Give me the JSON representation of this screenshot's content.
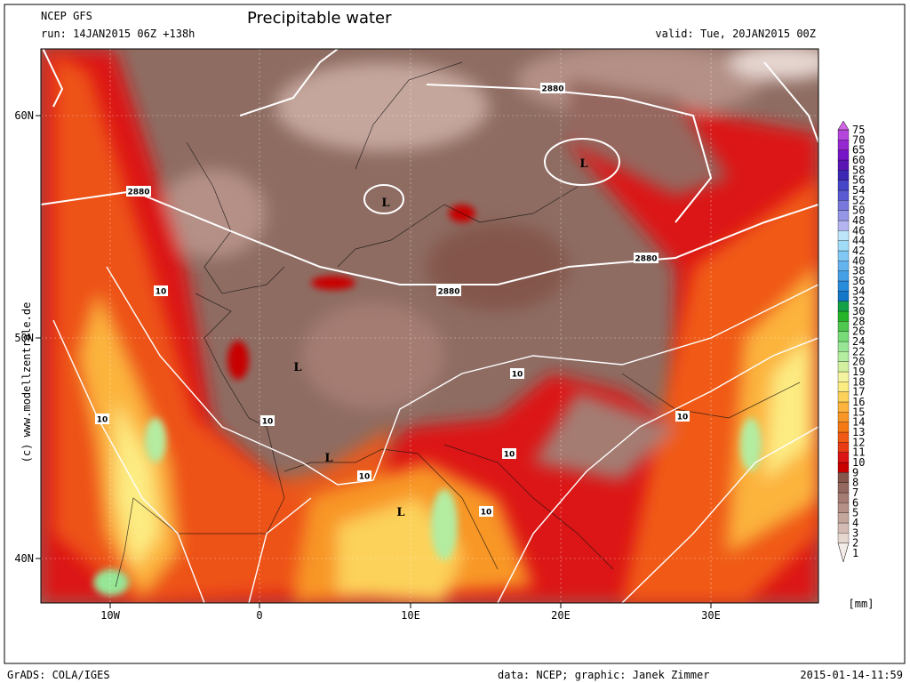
{
  "header": {
    "model": "NCEP GFS",
    "run": "run: 14JAN2015 06Z +138h",
    "title": "Precipitable water",
    "valid": "valid: Tue, 20JAN2015 00Z"
  },
  "lat_labels": [
    "60N",
    "50N",
    "40N"
  ],
  "lon_labels": [
    "10W",
    "0",
    "10E",
    "20E",
    "30E"
  ],
  "contour_labels": [
    "2880",
    "2880",
    "2880",
    "2880",
    "10",
    "10",
    "10",
    "10",
    "10",
    "10",
    "10",
    "10"
  ],
  "lows": [
    "L",
    "L",
    "L",
    "L",
    "L"
  ],
  "colorbar": {
    "unit": "[mm]",
    "levels": [
      "1",
      "2",
      "3",
      "4",
      "5",
      "6",
      "7",
      "8",
      "9",
      "10",
      "11",
      "12",
      "13",
      "14",
      "15",
      "16",
      "17",
      "18",
      "19",
      "20",
      "22",
      "24",
      "26",
      "28",
      "30",
      "32",
      "34",
      "36",
      "38",
      "40",
      "42",
      "44",
      "46",
      "48",
      "50",
      "52",
      "54",
      "56",
      "58",
      "60",
      "65",
      "70",
      "75"
    ],
    "colors": [
      "#f4ece8",
      "#e6d6d0",
      "#d4bcb4",
      "#c4a69c",
      "#b49086",
      "#a47c72",
      "#94685e",
      "#84564c",
      "#c80000",
      "#dc1414",
      "#e83c14",
      "#f05a14",
      "#f47814",
      "#f89628",
      "#fcb43c",
      "#fcd25a",
      "#fcec82",
      "#f4f4a0",
      "#d2f0a0",
      "#b4eca0",
      "#96e696",
      "#78dc78",
      "#50c850",
      "#28b428",
      "#14a046",
      "#1478c8",
      "#288cdc",
      "#46a0e6",
      "#64b4f0",
      "#82c8f4",
      "#a0dcf8",
      "#bee6fa",
      "#b4b4f0",
      "#9696e6",
      "#7878dc",
      "#5a5ad2",
      "#4646c8",
      "#3c28b4",
      "#5a14b4",
      "#7814c8",
      "#9628d2",
      "#b446dc",
      "#d264e6"
    ]
  },
  "watermark": "(c) www.modellzentrale.de",
  "footer": {
    "software": "GrADS: COLA/IGES",
    "credit": "data: NCEP; graphic: Janek Zimmer",
    "timestamp": "2015-01-14-11:59"
  }
}
